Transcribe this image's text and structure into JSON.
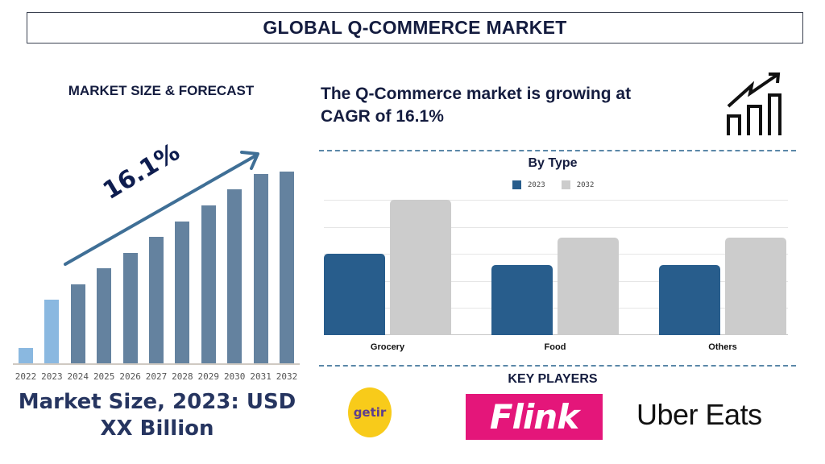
{
  "header": {
    "title": "GLOBAL Q-COMMERCE MARKET"
  },
  "left_panel": {
    "heading": "MARKET SIZE & FORECAST",
    "cagr_label": "16.1%",
    "market_size_line1": "Market Size, 2023: USD",
    "market_size_line2": "XX Billion"
  },
  "right_panel": {
    "growth_text_line1": "The Q-Commerce market is growing at",
    "growth_text_line2": "CAGR of 16.1%",
    "growth_icon": "bar-chart-growth-icon",
    "by_type_title": "By Type",
    "key_players_title": "KEY PLAYERS",
    "key_players": [
      {
        "name": "getir",
        "color": "#f8cb1a",
        "text_color": "#5d3e8f"
      },
      {
        "name": "Flink",
        "color": "#e4167a",
        "text_color": "#ffffff"
      },
      {
        "name": "Uber Eats",
        "color": "#ffffff",
        "text_color": "#111111"
      }
    ]
  },
  "colors": {
    "forecast_bar_actual": "#8ab8e0",
    "forecast_bar_projected": "#64829f",
    "arrow": "#3f6f96",
    "type_2023": "#285d8c",
    "type_2032": "#cccccc"
  },
  "chart_data": [
    {
      "type": "bar",
      "title": "MARKET SIZE & FORECAST",
      "categories": [
        "2022",
        "2023",
        "2024",
        "2025",
        "2026",
        "2027",
        "2028",
        "2029",
        "2030",
        "2031",
        "2032"
      ],
      "values": [
        19,
        79,
        98,
        118,
        137,
        157,
        176,
        196,
        216,
        235,
        238
      ],
      "value_unit": "relative bar height (no axis shown)",
      "annotation": "16.1%",
      "xlabel": "",
      "ylabel": "",
      "grid": false,
      "legend": null
    },
    {
      "type": "bar",
      "title": "By Type",
      "categories": [
        "Grocery",
        "Food",
        "Others"
      ],
      "series": [
        {
          "name": "2023",
          "values": [
            3.0,
            2.6,
            2.6
          ]
        },
        {
          "name": "2032",
          "values": [
            5.0,
            3.6,
            3.6
          ]
        }
      ],
      "ylim": [
        0,
        5
      ],
      "value_unit": "gridline units (no axis labels shown)",
      "grid": true,
      "legend_position": "top",
      "xlabel": "",
      "ylabel": ""
    }
  ]
}
